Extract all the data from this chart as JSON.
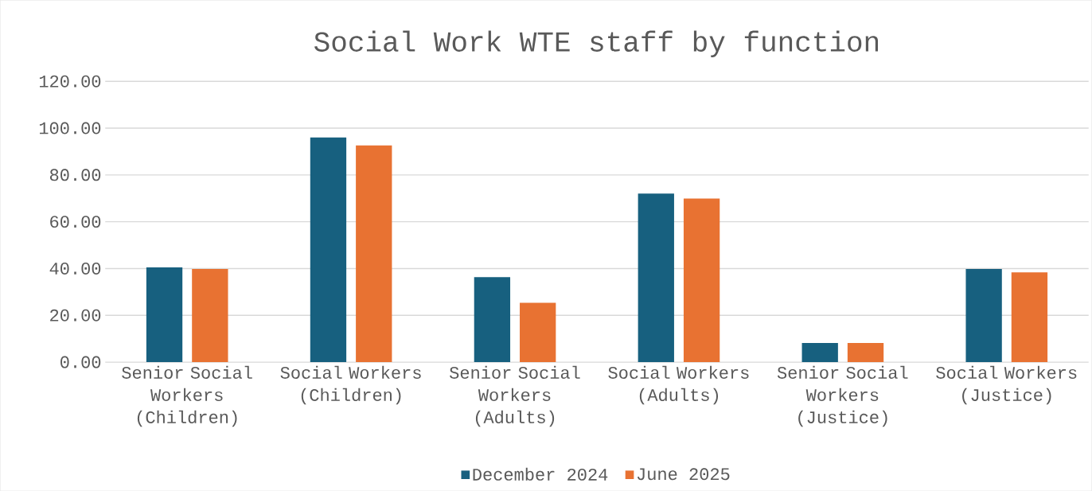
{
  "chart_data": {
    "type": "bar",
    "title": "Social Work WTE staff by function",
    "categories": [
      "Senior Social Workers (Children)",
      "Social Workers (Children)",
      "Senior Social Workers (Adults)",
      "Social Workers (Adults)",
      "Senior Social Workers (Justice)",
      "Social Workers (Justice)"
    ],
    "series": [
      {
        "name": "December 2024",
        "color": "#17607f",
        "values": [
          40.5,
          96.0,
          36.3,
          72.0,
          8.2,
          39.8
        ]
      },
      {
        "name": "June 2025",
        "color": "#e87232",
        "values": [
          39.8,
          92.6,
          25.4,
          69.9,
          8.2,
          38.4
        ]
      }
    ],
    "ylim": [
      0,
      120
    ],
    "yticks": [
      {
        "value": 0,
        "label": "0.00"
      },
      {
        "value": 20,
        "label": "20.00"
      },
      {
        "value": 40,
        "label": "40.00"
      },
      {
        "value": 60,
        "label": "60.00"
      },
      {
        "value": 80,
        "label": "80.00"
      },
      {
        "value": 100,
        "label": "100.00"
      },
      {
        "value": 120,
        "label": "120.00"
      }
    ],
    "grid": "y",
    "legend": "bottom"
  }
}
